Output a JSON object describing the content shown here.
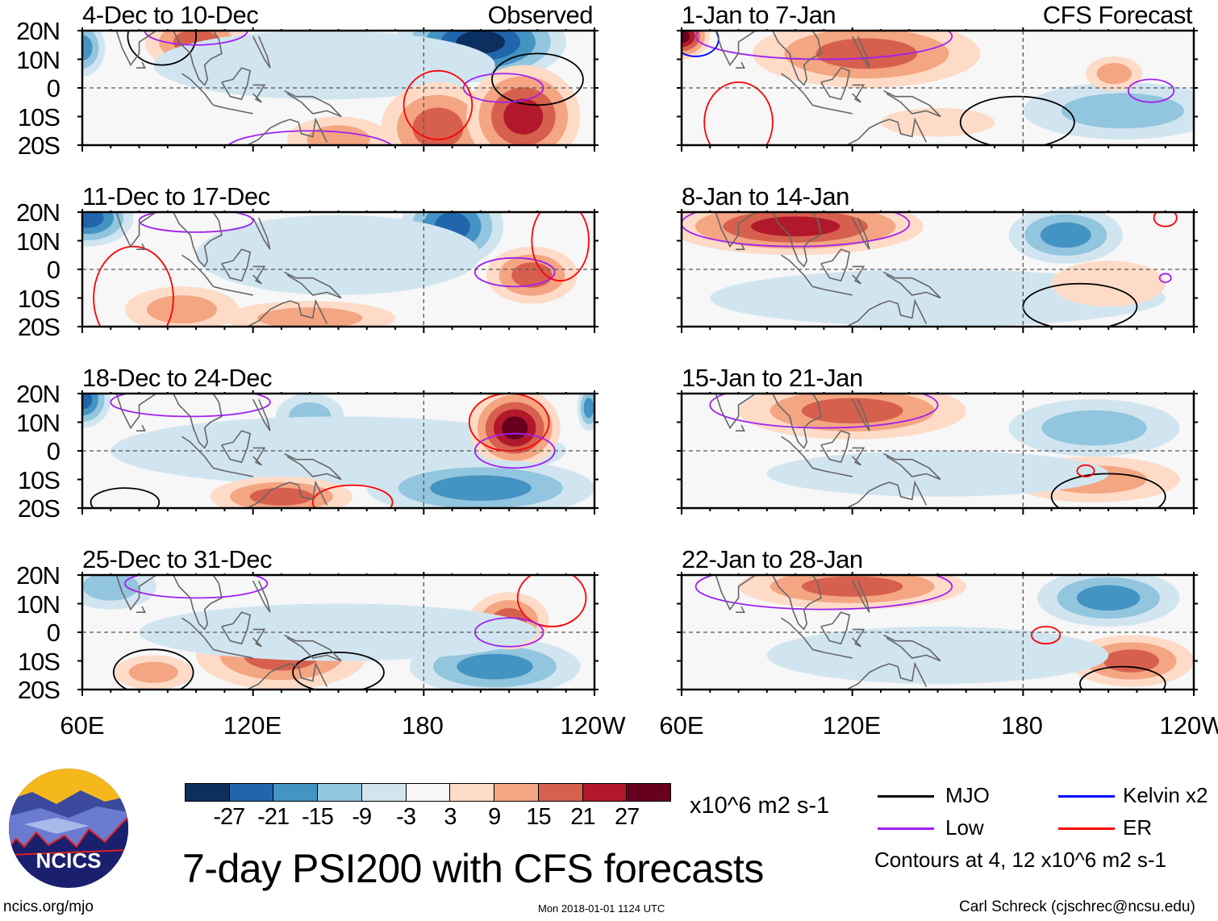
{
  "left_column_label": "Observed",
  "right_column_label": "CFS Forecast",
  "panels": [
    {
      "title": "4-Dec to 10-Dec",
      "column": "Observed"
    },
    {
      "title": "11-Dec to 17-Dec",
      "column": "Observed"
    },
    {
      "title": "18-Dec to 24-Dec",
      "column": "Observed"
    },
    {
      "title": "25-Dec to 31-Dec",
      "column": "Observed"
    },
    {
      "title": "1-Jan to 7-Jan",
      "column": "CFS Forecast"
    },
    {
      "title": "8-Jan to 14-Jan",
      "column": "CFS Forecast"
    },
    {
      "title": "15-Jan to 21-Jan",
      "column": "CFS Forecast"
    },
    {
      "title": "22-Jan to 28-Jan",
      "column": "CFS Forecast"
    }
  ],
  "y_ticks": [
    "20N",
    "10N",
    "0",
    "10S",
    "20S"
  ],
  "x_ticks": [
    "60E",
    "120E",
    "180",
    "120W"
  ],
  "colorbar": {
    "labels": [
      "-27",
      "-21",
      "-15",
      "-9",
      "-3",
      "3",
      "9",
      "15",
      "21",
      "27"
    ],
    "colors": [
      "#0b2f5f",
      "#2166ac",
      "#4393c3",
      "#92c5de",
      "#d1e5f0",
      "#f7f7f7",
      "#fddbc7",
      "#f4a582",
      "#d6604d",
      "#b2182b",
      "#67001f"
    ],
    "units": "x10^6 m2 s-1"
  },
  "legend": {
    "items": [
      {
        "label": "MJO",
        "color": "#000000"
      },
      {
        "label": "Kelvin x2",
        "color": "#0000ff"
      },
      {
        "label": "Low",
        "color": "#a020f0"
      },
      {
        "label": "ER",
        "color": "#ff0000"
      }
    ],
    "note": "Contours at 4, 12 x10^6 m2 s-1"
  },
  "title": "7-day PSI200 with CFS forecasts",
  "logo_text": "NCICS",
  "footer": {
    "url": "ncics.org/mjo",
    "timestamp": "Mon 2018-01-01 1124 UTC",
    "author": "Carl Schreck (cjschrec@ncsu.edu)"
  }
}
